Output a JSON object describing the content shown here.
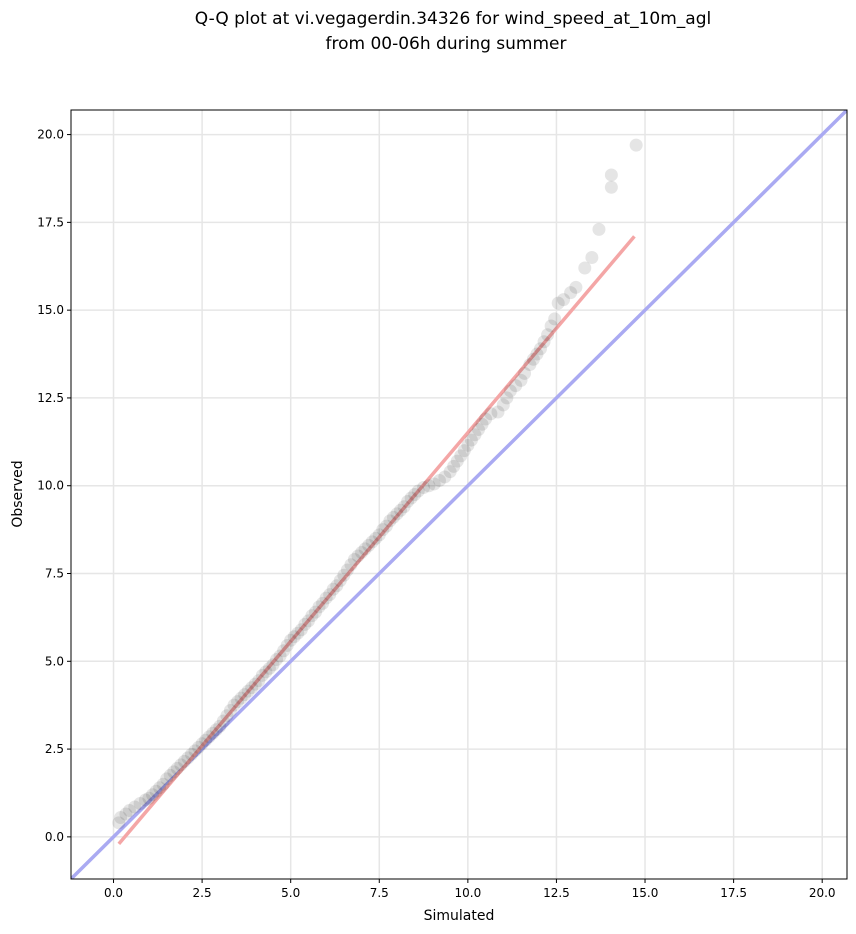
{
  "chart_data": {
    "type": "scatter",
    "title_lines": [
      "Q-Q plot at vi.vegagerdin.34326 for wind_speed_at_10m_agl",
      "from 00-06h during summer"
    ],
    "xlabel": "Simulated",
    "ylabel": "Observed",
    "xlim": [
      -1.2,
      20.7
    ],
    "ylim": [
      -1.2,
      20.7
    ],
    "xticks": [
      "0.0",
      "2.5",
      "5.0",
      "7.5",
      "10.0",
      "12.5",
      "15.0",
      "17.5",
      "20.0"
    ],
    "yticks": [
      "0.0",
      "2.5",
      "5.0",
      "7.5",
      "10.0",
      "12.5",
      "15.0",
      "17.5",
      "20.0"
    ],
    "xtick_values": [
      0,
      2.5,
      5,
      7.5,
      10,
      12.5,
      15,
      17.5,
      20
    ],
    "ytick_values": [
      0,
      2.5,
      5,
      7.5,
      10,
      12.5,
      15,
      17.5,
      20
    ],
    "grid": true,
    "identity_line": {
      "color": "#aaaaf2"
    },
    "fit_line": {
      "color": "#f4a6a6",
      "x": [
        0.15,
        14.7
      ],
      "y": [
        -0.2,
        17.1
      ]
    },
    "point_color": "#000000",
    "points": [
      [
        0.15,
        0.4
      ],
      [
        0.2,
        0.55
      ],
      [
        0.35,
        0.65
      ],
      [
        0.45,
        0.75
      ],
      [
        0.6,
        0.85
      ],
      [
        0.75,
        0.95
      ],
      [
        0.9,
        1.05
      ],
      [
        1.0,
        1.1
      ],
      [
        1.1,
        1.2
      ],
      [
        1.2,
        1.3
      ],
      [
        1.3,
        1.4
      ],
      [
        1.4,
        1.5
      ],
      [
        1.5,
        1.65
      ],
      [
        1.6,
        1.75
      ],
      [
        1.7,
        1.85
      ],
      [
        1.8,
        1.95
      ],
      [
        1.9,
        2.05
      ],
      [
        2.0,
        2.15
      ],
      [
        2.1,
        2.25
      ],
      [
        2.2,
        2.35
      ],
      [
        2.3,
        2.45
      ],
      [
        2.4,
        2.55
      ],
      [
        2.5,
        2.65
      ],
      [
        2.6,
        2.75
      ],
      [
        2.7,
        2.85
      ],
      [
        2.8,
        2.95
      ],
      [
        2.9,
        3.05
      ],
      [
        3.0,
        3.15
      ],
      [
        3.1,
        3.3
      ],
      [
        3.2,
        3.45
      ],
      [
        3.3,
        3.6
      ],
      [
        3.4,
        3.75
      ],
      [
        3.5,
        3.85
      ],
      [
        3.6,
        3.95
      ],
      [
        3.7,
        4.05
      ],
      [
        3.8,
        4.15
      ],
      [
        3.9,
        4.25
      ],
      [
        4.0,
        4.35
      ],
      [
        4.1,
        4.45
      ],
      [
        4.2,
        4.6
      ],
      [
        4.3,
        4.7
      ],
      [
        4.4,
        4.8
      ],
      [
        4.5,
        4.9
      ],
      [
        4.6,
        5.05
      ],
      [
        4.7,
        5.15
      ],
      [
        4.8,
        5.3
      ],
      [
        4.9,
        5.45
      ],
      [
        5.0,
        5.6
      ],
      [
        5.1,
        5.7
      ],
      [
        5.2,
        5.8
      ],
      [
        5.3,
        5.9
      ],
      [
        5.4,
        6.05
      ],
      [
        5.5,
        6.15
      ],
      [
        5.6,
        6.3
      ],
      [
        5.7,
        6.4
      ],
      [
        5.8,
        6.55
      ],
      [
        5.9,
        6.65
      ],
      [
        6.0,
        6.8
      ],
      [
        6.1,
        6.9
      ],
      [
        6.2,
        7.05
      ],
      [
        6.3,
        7.15
      ],
      [
        6.4,
        7.3
      ],
      [
        6.5,
        7.45
      ],
      [
        6.6,
        7.6
      ],
      [
        6.7,
        7.75
      ],
      [
        6.8,
        7.9
      ],
      [
        6.9,
        8.0
      ],
      [
        7.0,
        8.1
      ],
      [
        7.1,
        8.2
      ],
      [
        7.2,
        8.3
      ],
      [
        7.3,
        8.4
      ],
      [
        7.4,
        8.5
      ],
      [
        7.5,
        8.6
      ],
      [
        7.6,
        8.75
      ],
      [
        7.7,
        8.85
      ],
      [
        7.8,
        9.0
      ],
      [
        7.9,
        9.1
      ],
      [
        8.0,
        9.2
      ],
      [
        8.1,
        9.3
      ],
      [
        8.2,
        9.4
      ],
      [
        8.3,
        9.55
      ],
      [
        8.4,
        9.65
      ],
      [
        8.5,
        9.75
      ],
      [
        8.6,
        9.85
      ],
      [
        8.75,
        9.95
      ],
      [
        8.9,
        10.0
      ],
      [
        9.05,
        10.05
      ],
      [
        9.2,
        10.15
      ],
      [
        9.35,
        10.25
      ],
      [
        9.5,
        10.4
      ],
      [
        9.6,
        10.55
      ],
      [
        9.7,
        10.7
      ],
      [
        9.8,
        10.85
      ],
      [
        9.9,
        11.0
      ],
      [
        10.0,
        11.15
      ],
      [
        10.1,
        11.3
      ],
      [
        10.2,
        11.45
      ],
      [
        10.3,
        11.6
      ],
      [
        10.4,
        11.75
      ],
      [
        10.5,
        11.9
      ],
      [
        10.65,
        12.05
      ],
      [
        10.85,
        12.1
      ],
      [
        11.0,
        12.3
      ],
      [
        11.1,
        12.5
      ],
      [
        11.2,
        12.7
      ],
      [
        11.35,
        12.85
      ],
      [
        11.5,
        13.0
      ],
      [
        11.6,
        13.2
      ],
      [
        11.75,
        13.45
      ],
      [
        11.85,
        13.6
      ],
      [
        11.95,
        13.75
      ],
      [
        12.05,
        13.9
      ],
      [
        12.15,
        14.1
      ],
      [
        12.25,
        14.3
      ],
      [
        12.35,
        14.55
      ],
      [
        12.45,
        14.75
      ],
      [
        12.55,
        15.2
      ],
      [
        12.7,
        15.3
      ],
      [
        12.9,
        15.5
      ],
      [
        13.05,
        15.65
      ],
      [
        13.3,
        16.2
      ],
      [
        13.5,
        16.5
      ],
      [
        13.7,
        17.3
      ],
      [
        14.05,
        18.5
      ],
      [
        14.05,
        18.85
      ],
      [
        14.75,
        19.7
      ]
    ]
  }
}
